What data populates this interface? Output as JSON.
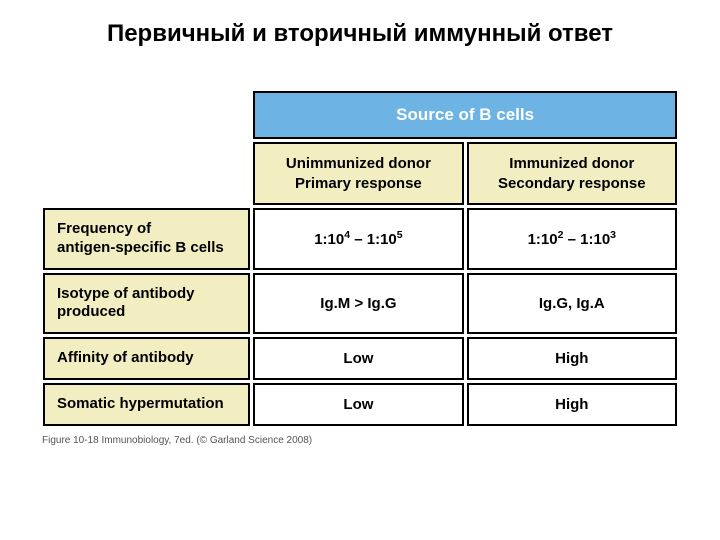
{
  "title": "Первичный и вторичный иммунный ответ",
  "table": {
    "mainHeader": "Source of B cells",
    "subHeaders": {
      "col1_line1": "Unimmunized donor",
      "col1_line2": "Primary response",
      "col2_line1": "Immunized donor",
      "col2_line2": "Secondary response"
    },
    "rows": [
      {
        "label_line1": "Frequency of",
        "label_line2": "antigen-specific B cells",
        "val1_html": "1:10<sup>4</sup> – 1:10<sup>5</sup>",
        "val2_html": "1:10<sup>2</sup> – 1:10<sup>3</sup>"
      },
      {
        "label_line1": "Isotype of antibody",
        "label_line2": "produced",
        "val1_html": "Ig.M > Ig.G",
        "val2_html": "Ig.G, Ig.A"
      },
      {
        "label_line1": "Affinity of antibody",
        "label_line2": "",
        "val1_html": "Low",
        "val2_html": "High"
      },
      {
        "label_line1": "Somatic hypermutation",
        "label_line2": "",
        "val1_html": "Low",
        "val2_html": "High"
      }
    ]
  },
  "caption": "Figure 10-18 Immunobiology, 7ed. (© Garland Science 2008)",
  "colors": {
    "header_bg": "#6db4e4",
    "header_fg": "#ffffff",
    "label_bg": "#f2eec2",
    "val_bg": "#ffffff",
    "border": "#000000"
  }
}
